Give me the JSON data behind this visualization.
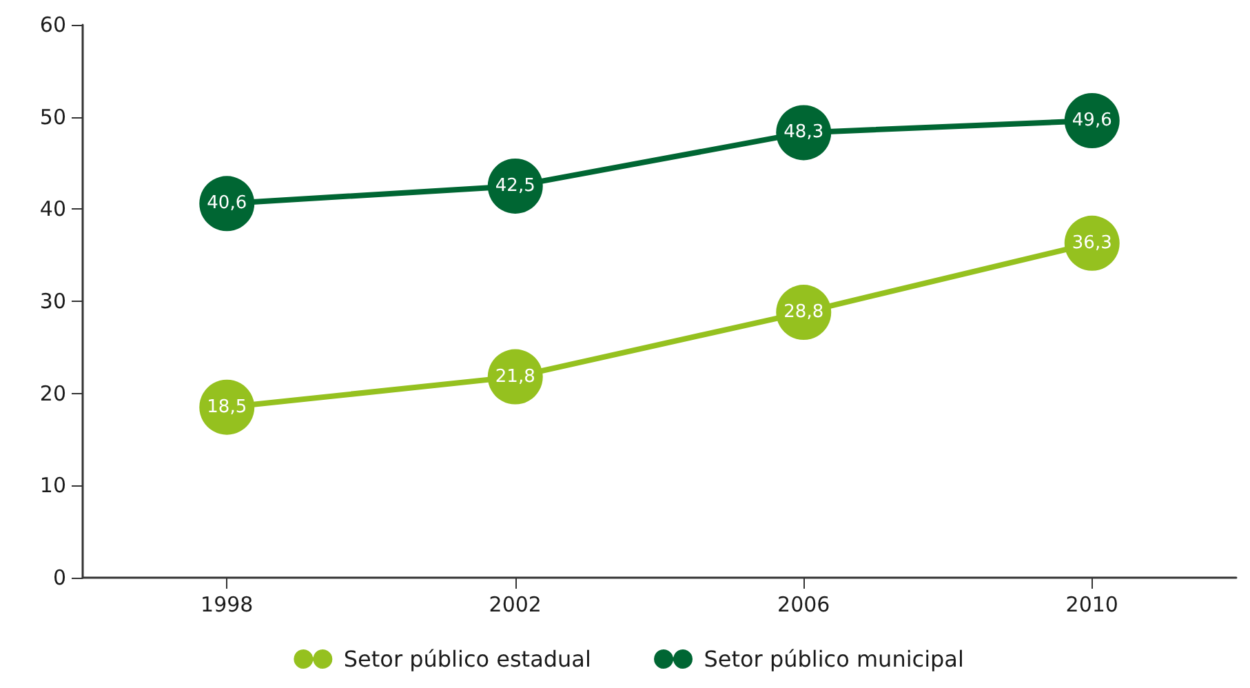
{
  "chart_data": {
    "type": "line",
    "categories": [
      "1998",
      "2002",
      "2006",
      "2010"
    ],
    "series": [
      {
        "name": "Setor público estadual",
        "color": "#95c11f",
        "values": [
          18.5,
          21.8,
          28.8,
          36.3
        ],
        "value_labels": [
          "18,5",
          "21,8",
          "28,8",
          "36,3"
        ]
      },
      {
        "name": "Setor público municipal",
        "color": "#006633",
        "values": [
          40.6,
          42.5,
          48.3,
          49.6
        ],
        "value_labels": [
          "40,6",
          "42,5",
          "48,3",
          "49,6"
        ]
      }
    ],
    "ylim": [
      0,
      60
    ],
    "yticks": [
      0,
      10,
      20,
      30,
      40,
      50,
      60
    ],
    "grid": false,
    "legend": "bottom",
    "marker": "circle",
    "line_style": "solid"
  }
}
